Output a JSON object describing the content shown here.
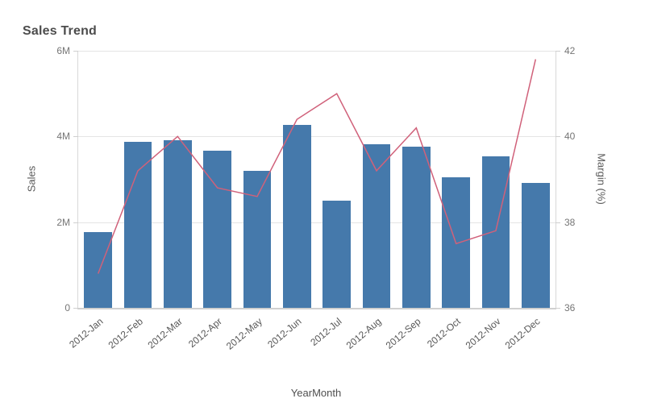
{
  "chart_data": {
    "type": "combo",
    "title": "Sales Trend",
    "xlabel": "YearMonth",
    "categories": [
      "2012-Jan",
      "2012-Feb",
      "2012-Mar",
      "2012-Apr",
      "2012-May",
      "2012-Jun",
      "2012-Jul",
      "2012-Aug",
      "2012-Sep",
      "2012-Oct",
      "2012-Nov",
      "2012-Dec"
    ],
    "series": [
      {
        "name": "Sales",
        "type": "bar",
        "axis": "left",
        "color": "#4579ab",
        "unit": "M",
        "values": [
          1.77,
          3.88,
          3.92,
          3.67,
          3.2,
          4.27,
          2.51,
          3.82,
          3.76,
          3.05,
          3.53,
          2.92
        ]
      },
      {
        "name": "Margin (%)",
        "type": "line",
        "axis": "right",
        "color": "#d0617a",
        "values": [
          36.8,
          39.2,
          40.0,
          38.8,
          38.6,
          40.4,
          41.0,
          39.2,
          40.2,
          37.5,
          37.8,
          41.8
        ]
      }
    ],
    "left_axis": {
      "label": "Sales",
      "min": 0,
      "max": 6,
      "unit": "M",
      "ticks": [
        {
          "label": "0",
          "value": 0
        },
        {
          "label": "2M",
          "value": 2
        },
        {
          "label": "4M",
          "value": 4
        },
        {
          "label": "6M",
          "value": 6
        }
      ]
    },
    "right_axis": {
      "label": "Margin (%)",
      "min": 36,
      "max": 42,
      "ticks": [
        {
          "label": "36",
          "value": 36
        },
        {
          "label": "38",
          "value": 38
        },
        {
          "label": "40",
          "value": 40
        },
        {
          "label": "42",
          "value": 42
        }
      ]
    },
    "grid": true,
    "legend": "none",
    "background": "#ffffff"
  }
}
